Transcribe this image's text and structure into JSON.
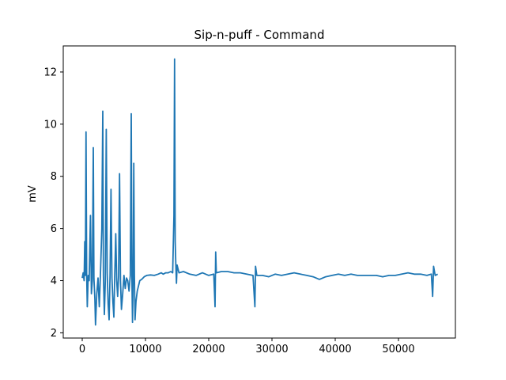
{
  "chart_data": {
    "type": "line",
    "title": "Sip-n-puff - Command",
    "xlabel": "",
    "ylabel": "mV",
    "xlim": [
      -3000,
      59000
    ],
    "ylim": [
      1.8,
      13.0
    ],
    "x_ticks": [
      0,
      10000,
      20000,
      30000,
      40000,
      50000
    ],
    "y_ticks": [
      2,
      4,
      6,
      8,
      10,
      12
    ],
    "x_tick_labels": [
      "0",
      "10000",
      "20000",
      "30000",
      "40000",
      "50000"
    ],
    "y_tick_labels": [
      "2",
      "4",
      "6",
      "8",
      "10",
      "12"
    ],
    "grid": false,
    "legend": "none",
    "series": [
      {
        "color": "#1f77b4",
        "points": [
          [
            0,
            4.1
          ],
          [
            150,
            4.3
          ],
          [
            300,
            4.0
          ],
          [
            400,
            5.5
          ],
          [
            500,
            4.2
          ],
          [
            600,
            9.7
          ],
          [
            700,
            4.3
          ],
          [
            800,
            3.0
          ],
          [
            950,
            4.2
          ],
          [
            1100,
            4.0
          ],
          [
            1300,
            6.5
          ],
          [
            1450,
            3.5
          ],
          [
            1600,
            4.0
          ],
          [
            1750,
            9.1
          ],
          [
            1850,
            4.1
          ],
          [
            2000,
            3.3
          ],
          [
            2100,
            2.3
          ],
          [
            2300,
            3.5
          ],
          [
            2500,
            4.1
          ],
          [
            2700,
            3.0
          ],
          [
            2900,
            4.4
          ],
          [
            3100,
            6.0
          ],
          [
            3250,
            10.5
          ],
          [
            3350,
            4.2
          ],
          [
            3500,
            2.7
          ],
          [
            3650,
            4.0
          ],
          [
            3800,
            9.8
          ],
          [
            3950,
            4.3
          ],
          [
            4100,
            3.1
          ],
          [
            4250,
            2.5
          ],
          [
            4400,
            4.2
          ],
          [
            4550,
            7.5
          ],
          [
            4700,
            4.1
          ],
          [
            4850,
            3.2
          ],
          [
            5000,
            2.6
          ],
          [
            5150,
            4.3
          ],
          [
            5300,
            5.8
          ],
          [
            5450,
            4.0
          ],
          [
            5600,
            3.4
          ],
          [
            5750,
            4.2
          ],
          [
            5900,
            8.1
          ],
          [
            6050,
            4.0
          ],
          [
            6200,
            2.9
          ],
          [
            6400,
            3.5
          ],
          [
            6600,
            4.2
          ],
          [
            6800,
            3.7
          ],
          [
            7000,
            4.1
          ],
          [
            7200,
            4.0
          ],
          [
            7400,
            3.6
          ],
          [
            7600,
            4.2
          ],
          [
            7750,
            10.4
          ],
          [
            7850,
            4.2
          ],
          [
            7950,
            2.4
          ],
          [
            8050,
            4.0
          ],
          [
            8150,
            8.5
          ],
          [
            8250,
            4.2
          ],
          [
            8350,
            2.5
          ],
          [
            8500,
            3.2
          ],
          [
            8700,
            3.6
          ],
          [
            8900,
            3.8
          ],
          [
            9100,
            4.0
          ],
          [
            9400,
            4.05
          ],
          [
            9800,
            4.15
          ],
          [
            10200,
            4.2
          ],
          [
            10800,
            4.22
          ],
          [
            11400,
            4.2
          ],
          [
            12000,
            4.25
          ],
          [
            12500,
            4.3
          ],
          [
            12800,
            4.25
          ],
          [
            13200,
            4.3
          ],
          [
            13600,
            4.3
          ],
          [
            14000,
            4.35
          ],
          [
            14300,
            4.3
          ],
          [
            14500,
            6.5
          ],
          [
            14600,
            12.5
          ],
          [
            14700,
            5.5
          ],
          [
            14800,
            4.6
          ],
          [
            14900,
            3.9
          ],
          [
            15000,
            4.6
          ],
          [
            15300,
            4.3
          ],
          [
            16000,
            4.35
          ],
          [
            17000,
            4.25
          ],
          [
            18000,
            4.2
          ],
          [
            19000,
            4.3
          ],
          [
            20000,
            4.2
          ],
          [
            20800,
            4.25
          ],
          [
            21000,
            3.0
          ],
          [
            21100,
            5.1
          ],
          [
            21200,
            4.3
          ],
          [
            22000,
            4.35
          ],
          [
            23000,
            4.35
          ],
          [
            24000,
            4.3
          ],
          [
            25000,
            4.3
          ],
          [
            26000,
            4.25
          ],
          [
            27000,
            4.2
          ],
          [
            27300,
            3.0
          ],
          [
            27400,
            4.55
          ],
          [
            27600,
            4.2
          ],
          [
            28500,
            4.2
          ],
          [
            29500,
            4.15
          ],
          [
            30500,
            4.25
          ],
          [
            31500,
            4.2
          ],
          [
            32500,
            4.25
          ],
          [
            33500,
            4.3
          ],
          [
            34500,
            4.25
          ],
          [
            35500,
            4.2
          ],
          [
            36500,
            4.15
          ],
          [
            37500,
            4.05
          ],
          [
            38500,
            4.15
          ],
          [
            39500,
            4.2
          ],
          [
            40500,
            4.25
          ],
          [
            41500,
            4.2
          ],
          [
            42500,
            4.25
          ],
          [
            43500,
            4.2
          ],
          [
            44500,
            4.2
          ],
          [
            45500,
            4.2
          ],
          [
            46500,
            4.2
          ],
          [
            47500,
            4.15
          ],
          [
            48500,
            4.2
          ],
          [
            49500,
            4.2
          ],
          [
            50500,
            4.25
          ],
          [
            51500,
            4.3
          ],
          [
            52500,
            4.25
          ],
          [
            53500,
            4.25
          ],
          [
            54500,
            4.2
          ],
          [
            55200,
            4.25
          ],
          [
            55400,
            3.4
          ],
          [
            55550,
            4.55
          ],
          [
            55800,
            4.2
          ],
          [
            56200,
            4.25
          ]
        ]
      }
    ]
  }
}
